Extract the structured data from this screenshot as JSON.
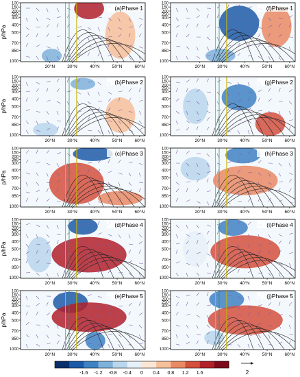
{
  "figure": {
    "y_axis_label": "p/hPa",
    "pressure_ticks": [
      "100",
      "150",
      "200",
      "250",
      "300",
      "400",
      "500",
      "700",
      "850",
      "1000"
    ],
    "lat_ticks": [
      "20°N",
      "30°N",
      "40°N",
      "50°N",
      "60°N"
    ],
    "panels": [
      {
        "label": "(a)Phase 1"
      },
      {
        "label": "(f)Phase 1"
      },
      {
        "label": "(b)Phase 2"
      },
      {
        "label": "(g)Phase 2"
      },
      {
        "label": "(c)Phase 3"
      },
      {
        "label": "(h)Phase 3"
      },
      {
        "label": "(d)Phase 4"
      },
      {
        "label": "(i)Phase 4"
      },
      {
        "label": "(e)Phase 5"
      },
      {
        "label": "(j)Phase 5"
      }
    ],
    "colorbar": {
      "labels": [
        "-1.6",
        "-1.2",
        "-0.8",
        "-0.4",
        "0",
        "0.4",
        "0.8",
        "1.2",
        "1.6"
      ],
      "colors": [
        "#08306b",
        "#1c5aa8",
        "#3f83c4",
        "#7fb2da",
        "#b9d6ec",
        "#e6f0f8",
        "#fbe6d6",
        "#f6c09a",
        "#e98a64",
        "#d3503d",
        "#b2202a",
        "#7d0b1c"
      ]
    },
    "vector_reference": {
      "value": "2"
    }
  }
}
